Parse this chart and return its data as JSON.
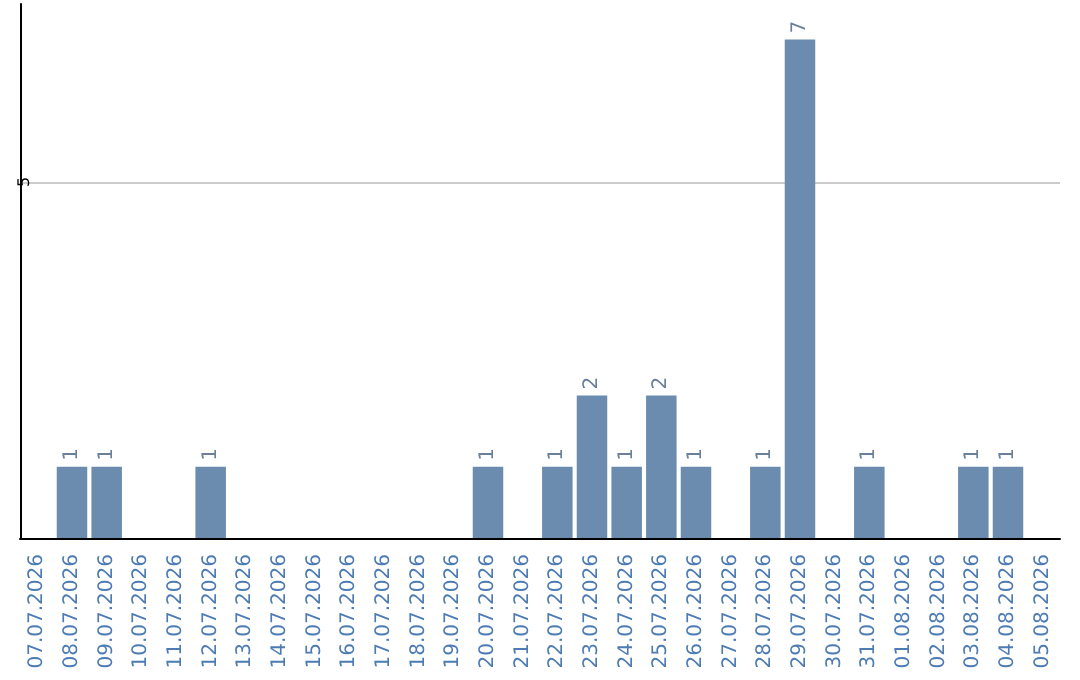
{
  "chart_data": {
    "type": "bar",
    "categories": [
      "07.07.2026",
      "08.07.2026",
      "09.07.2026",
      "10.07.2026",
      "11.07.2026",
      "12.07.2026",
      "13.07.2026",
      "14.07.2026",
      "15.07.2026",
      "16.07.2026",
      "17.07.2026",
      "18.07.2026",
      "19.07.2026",
      "20.07.2026",
      "21.07.2026",
      "22.07.2026",
      "23.07.2026",
      "24.07.2026",
      "25.07.2026",
      "26.07.2026",
      "27.07.2026",
      "28.07.2026",
      "29.07.2026",
      "30.07.2026",
      "31.07.2026",
      "01.08.2026",
      "02.08.2026",
      "03.08.2026",
      "04.08.2026",
      "05.08.2026"
    ],
    "values": [
      0,
      1,
      1,
      0,
      0,
      1,
      0,
      0,
      0,
      0,
      0,
      0,
      0,
      1,
      0,
      1,
      2,
      1,
      2,
      1,
      0,
      1,
      7,
      0,
      1,
      0,
      0,
      1,
      1,
      0
    ],
    "value_labels": [
      null,
      "1",
      "1",
      null,
      null,
      "1",
      null,
      null,
      null,
      null,
      null,
      null,
      null,
      "1",
      null,
      "1",
      "2",
      "1",
      "2",
      "1",
      null,
      "1",
      "7",
      null,
      "1",
      null,
      null,
      "1",
      "1",
      null
    ],
    "color": "#6b8cae",
    "ylim": [
      0,
      7.5
    ],
    "yticks": [
      5
    ],
    "grid": "y"
  }
}
